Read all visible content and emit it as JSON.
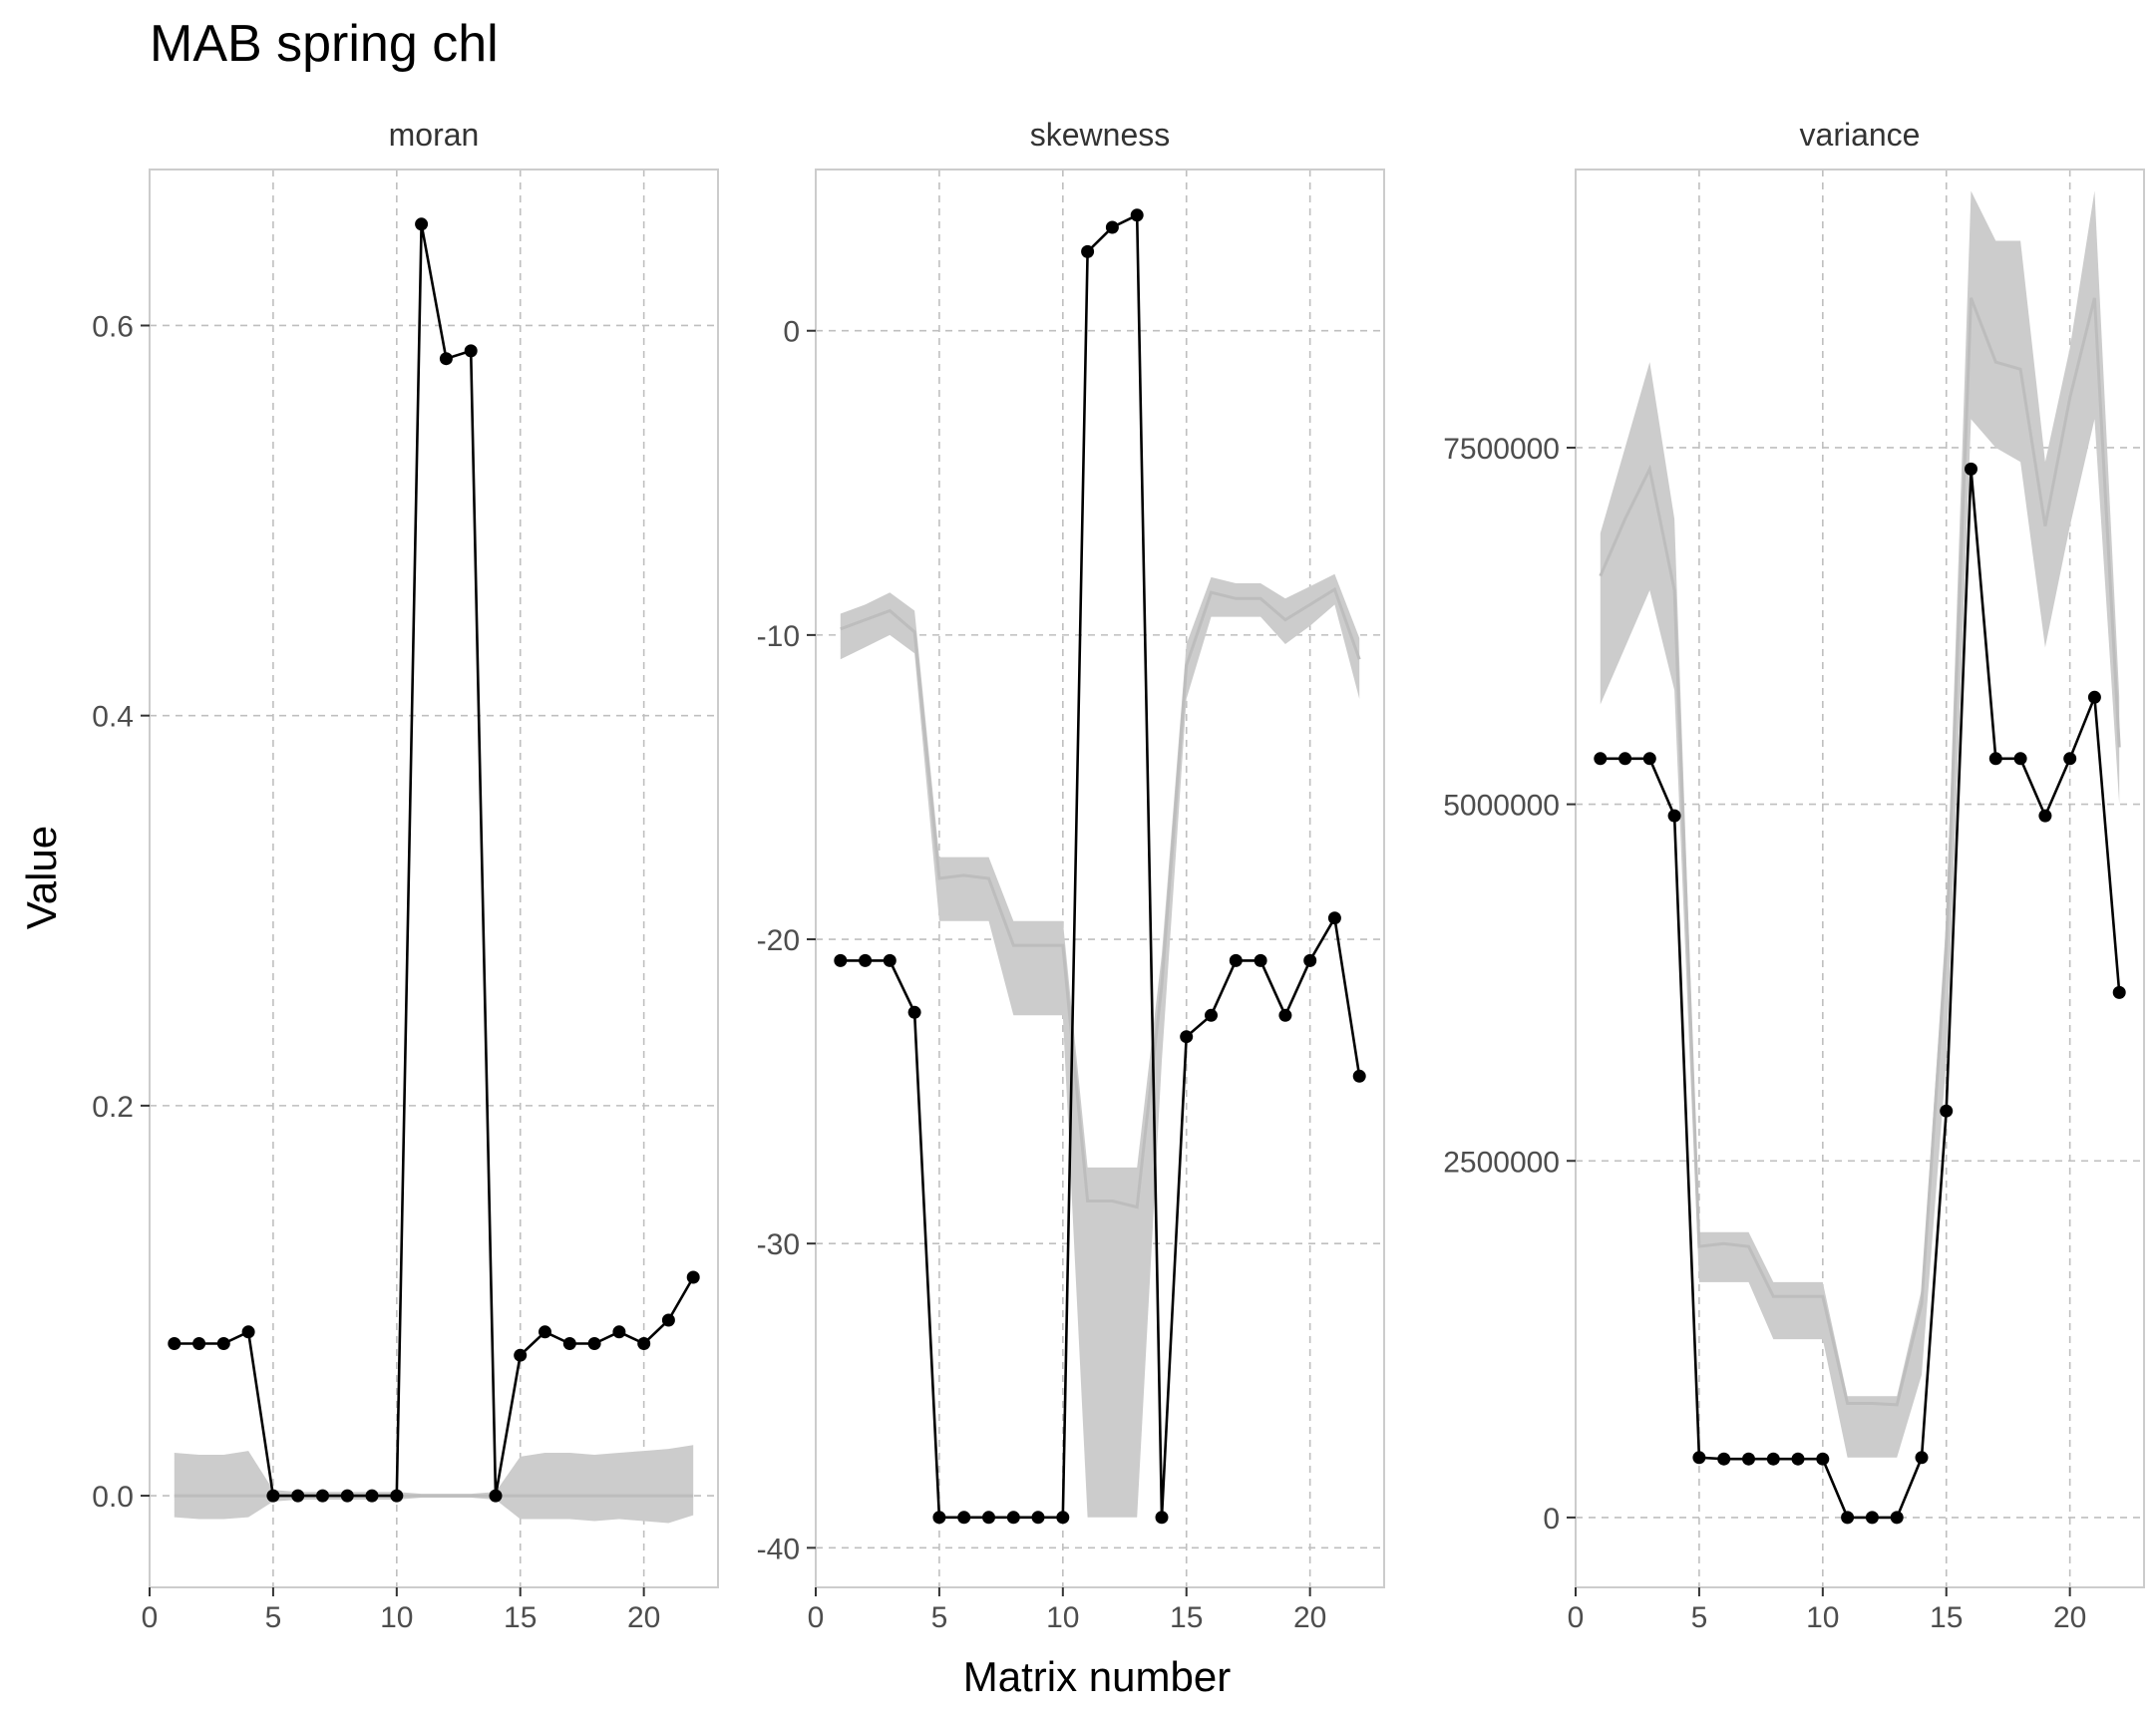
{
  "chart_data": {
    "type": "line",
    "title": "MAB spring chl",
    "xlabel": "Matrix number",
    "ylabel": "Value",
    "grid": true,
    "legend": "none",
    "colors": {
      "observed": "#000000",
      "band": "#cccccc",
      "band_line": "#bdbdbd",
      "grid": "#bfbfbf",
      "frame": "#cccccc",
      "strip": "#333333"
    },
    "panels": [
      {
        "name": "moran",
        "xlim": [
          0,
          23
        ],
        "ylim": [
          -0.047,
          0.68
        ],
        "x_ticks": [
          0,
          5,
          10,
          15,
          20
        ],
        "y_ticks": [
          0.0,
          0.2,
          0.4,
          0.6
        ],
        "y_tick_labels": [
          "0.0",
          "0.2",
          "0.4",
          "0.6"
        ],
        "observed": {
          "x": [
            1,
            2,
            3,
            4,
            5,
            6,
            7,
            8,
            9,
            10,
            11,
            12,
            13,
            14,
            15,
            16,
            17,
            18,
            19,
            20,
            21,
            22
          ],
          "y": [
            0.078,
            0.078,
            0.078,
            0.084,
            0.0,
            0.0,
            0.0,
            0.0,
            0.0,
            0.0,
            0.652,
            0.583,
            0.587,
            0.0,
            0.072,
            0.084,
            0.078,
            0.078,
            0.084,
            0.078,
            0.09,
            0.112
          ]
        },
        "band": {
          "x": [
            1,
            2,
            3,
            4,
            5,
            6,
            7,
            8,
            9,
            10,
            11,
            12,
            13,
            14,
            15,
            16,
            17,
            18,
            19,
            20,
            21,
            22
          ],
          "lower": [
            -0.011,
            -0.012,
            -0.012,
            -0.011,
            -0.003,
            -0.002,
            -0.002,
            -0.002,
            -0.002,
            -0.002,
            -0.001,
            -0.001,
            -0.001,
            -0.002,
            -0.012,
            -0.012,
            -0.012,
            -0.013,
            -0.012,
            -0.013,
            -0.014,
            -0.01
          ],
          "mean": [
            0.0,
            0.0,
            0.0,
            0.0,
            0.0,
            0.0,
            0.0,
            0.0,
            0.0,
            0.0,
            0.0,
            0.0,
            0.0,
            0.0,
            0.0,
            0.0,
            0.0,
            0.0,
            0.0,
            0.0,
            0.0,
            0.0
          ],
          "upper": [
            0.022,
            0.021,
            0.021,
            0.023,
            0.003,
            0.002,
            0.002,
            0.002,
            0.002,
            0.002,
            0.001,
            0.001,
            0.001,
            0.002,
            0.02,
            0.022,
            0.022,
            0.021,
            0.022,
            0.023,
            0.024,
            0.026
          ]
        }
      },
      {
        "name": "skewness",
        "xlim": [
          0,
          23
        ],
        "ylim": [
          -41.3,
          5.3
        ],
        "x_ticks": [
          0,
          5,
          10,
          15,
          20
        ],
        "y_ticks": [
          0,
          -10,
          -20,
          -30,
          -40
        ],
        "y_tick_labels": [
          "0",
          "-10",
          "-20",
          "-30",
          "-40"
        ],
        "observed": {
          "x": [
            1,
            2,
            3,
            4,
            5,
            6,
            7,
            8,
            9,
            10,
            11,
            12,
            13,
            14,
            15,
            16,
            17,
            18,
            19,
            20,
            21,
            22
          ],
          "y": [
            -20.7,
            -20.7,
            -20.7,
            -22.4,
            -39.0,
            -39.0,
            -39.0,
            -39.0,
            -39.0,
            -39.0,
            2.6,
            3.4,
            3.8,
            -39.0,
            -23.2,
            -22.5,
            -20.7,
            -20.7,
            -22.5,
            -20.7,
            -19.3,
            -24.5
          ]
        },
        "band": {
          "x": [
            1,
            2,
            3,
            4,
            5,
            6,
            7,
            8,
            9,
            10,
            11,
            12,
            13,
            14,
            15,
            16,
            17,
            18,
            19,
            20,
            21,
            22
          ],
          "lower": [
            -10.8,
            -10.4,
            -10.0,
            -10.6,
            -19.4,
            -19.4,
            -19.4,
            -22.5,
            -22.5,
            -22.5,
            -39.0,
            -39.0,
            -39.0,
            -24.0,
            -12.1,
            -9.4,
            -9.4,
            -9.4,
            -10.3,
            -9.7,
            -9.0,
            -12.1
          ],
          "mean": [
            -9.8,
            -9.5,
            -9.2,
            -9.9,
            -18.0,
            -17.9,
            -18.0,
            -20.2,
            -20.2,
            -20.2,
            -28.6,
            -28.6,
            -28.8,
            -21.5,
            -11.0,
            -8.6,
            -8.8,
            -8.8,
            -9.5,
            -9.0,
            -8.5,
            -10.8
          ],
          "upper": [
            -9.3,
            -9.0,
            -8.6,
            -9.2,
            -17.3,
            -17.3,
            -17.3,
            -19.4,
            -19.4,
            -19.4,
            -27.5,
            -27.5,
            -27.5,
            -20.5,
            -10.3,
            -8.1,
            -8.3,
            -8.3,
            -8.8,
            -8.4,
            -8.0,
            -10.1
          ]
        }
      },
      {
        "name": "variance",
        "xlim": [
          0,
          23
        ],
        "ylim": [
          -490000,
          9450000
        ],
        "x_ticks": [
          0,
          5,
          10,
          15,
          20
        ],
        "y_ticks": [
          0,
          2500000,
          5000000,
          7500000
        ],
        "y_tick_labels": [
          "0",
          "2500000",
          "5000000",
          "7500000"
        ],
        "observed": {
          "x": [
            1,
            2,
            3,
            4,
            5,
            6,
            7,
            8,
            9,
            10,
            11,
            12,
            13,
            14,
            15,
            16,
            17,
            18,
            19,
            20,
            21,
            22
          ],
          "y": [
            5320000,
            5320000,
            5320000,
            4920000,
            420000,
            410000,
            410000,
            410000,
            410000,
            410000,
            0,
            0,
            0,
            420000,
            2850000,
            7350000,
            5320000,
            5320000,
            4920000,
            5320000,
            5750000,
            3680000
          ]
        },
        "band": {
          "x": [
            1,
            2,
            3,
            4,
            5,
            6,
            7,
            8,
            9,
            10,
            11,
            12,
            13,
            14,
            15,
            16,
            17,
            18,
            19,
            20,
            21,
            22
          ],
          "lower": [
            5700000,
            6100000,
            6500000,
            5800000,
            1650000,
            1650000,
            1650000,
            1250000,
            1250000,
            1250000,
            420000,
            420000,
            420000,
            1000000,
            3200000,
            7700000,
            7500000,
            7400000,
            6100000,
            6950000,
            7700000,
            5000000
          ],
          "mean": [
            6600000,
            7000000,
            7350000,
            6500000,
            1900000,
            1920000,
            1900000,
            1550000,
            1550000,
            1550000,
            800000,
            800000,
            790000,
            1500000,
            4000000,
            8550000,
            8100000,
            8050000,
            6950000,
            7850000,
            8550000,
            5400000
          ],
          "upper": [
            6900000,
            7500000,
            8100000,
            7000000,
            2000000,
            2000000,
            2000000,
            1650000,
            1650000,
            1650000,
            850000,
            850000,
            850000,
            1600000,
            4200000,
            9300000,
            8950000,
            8950000,
            7400000,
            8200000,
            9300000,
            5750000
          ]
        }
      }
    ]
  }
}
